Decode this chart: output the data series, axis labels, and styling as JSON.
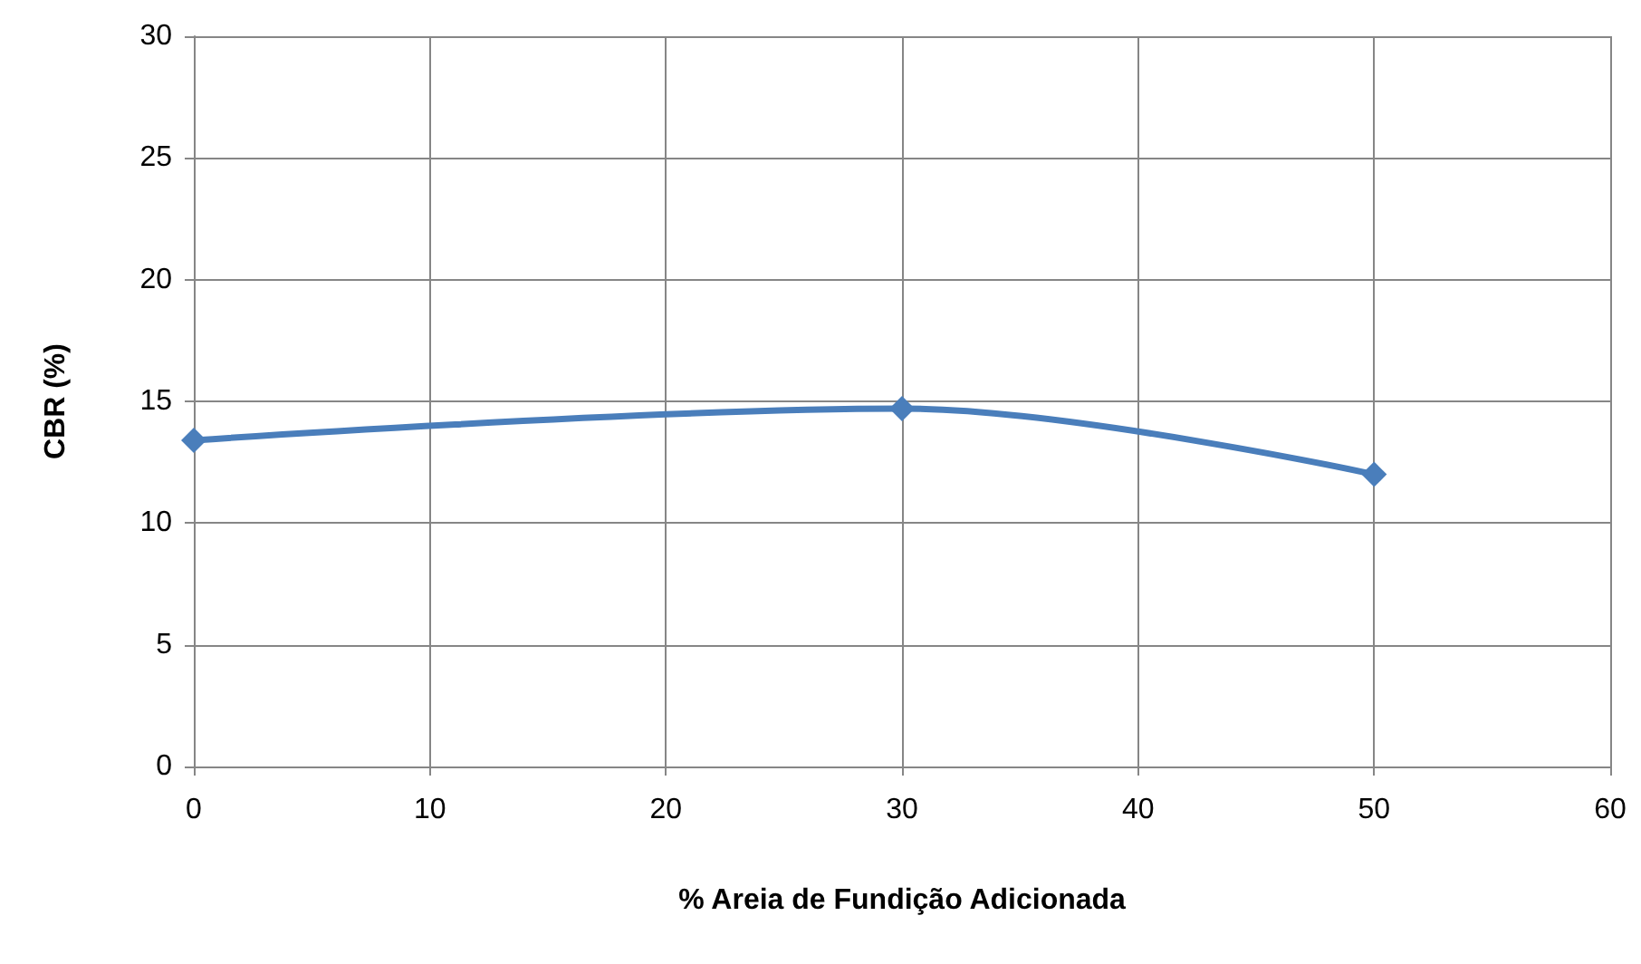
{
  "chart_data": {
    "type": "line",
    "xlabel": "% Areia de Fundição Adicionada",
    "ylabel": "CBR (%)",
    "x": [
      0,
      30,
      50
    ],
    "series": [
      {
        "color": "#4a7ebb",
        "values": [
          13.4,
          14.7,
          12.0
        ]
      }
    ],
    "xlim": [
      0,
      60
    ],
    "xticks": [
      0,
      10,
      20,
      30,
      40,
      50,
      60
    ],
    "ylim": [
      0,
      30
    ],
    "yticks": [
      0,
      5,
      10,
      15,
      20,
      25,
      30
    ],
    "grid": true,
    "marker": "diamond",
    "line_style": "solid"
  }
}
